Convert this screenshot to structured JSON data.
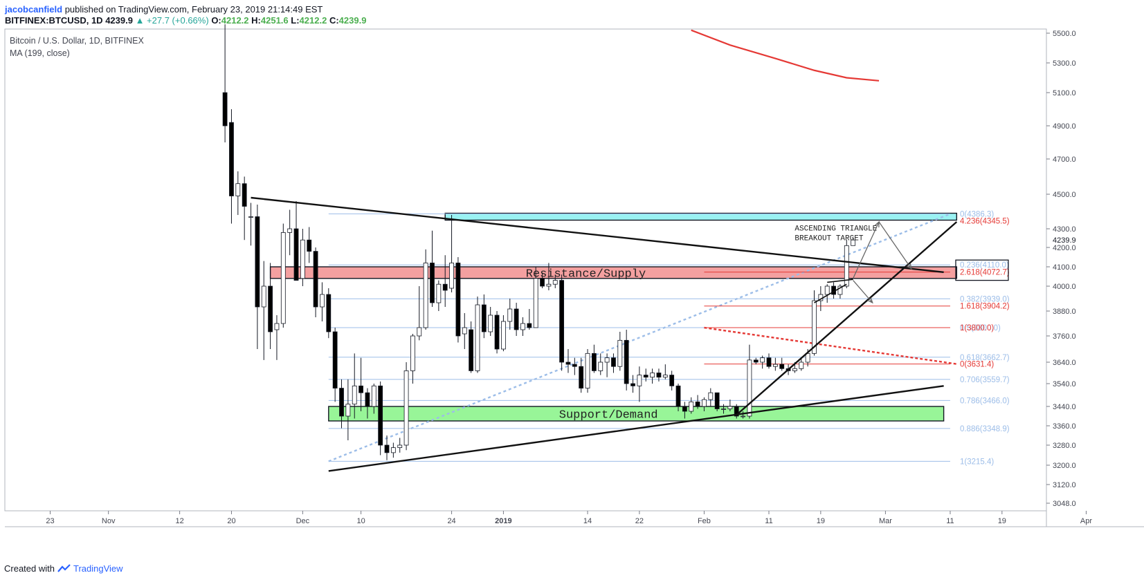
{
  "header": {
    "author": "jacobcanfield",
    "published": "published on TradingView.com, February 23, 2019 21:14:49 EST",
    "symbol": "BITFINEX:BTCUSD, 1D",
    "last": "4239.9",
    "change": "▲ +27.7 (+0.66%)",
    "o_label": "O:",
    "o": "4212.2",
    "h_label": "H:",
    "h": "4251.6",
    "l_label": "L:",
    "l": "4212.2",
    "c_label": "C:",
    "c": "4239.9"
  },
  "legend": {
    "title": "Bitcoin / U.S. Dollar, 1D, BITFINEX",
    "indicator": "MA (199, close)"
  },
  "footer": {
    "prefix": "Created with",
    "brand": "TradingView",
    "logo_icon": "tradingview-logo-icon"
  },
  "chart_data": {
    "type": "candlestick",
    "x_range": [
      "2018-10-16",
      "2019-04-09"
    ],
    "ylim": [
      2980,
      5560
    ],
    "x_ticks": [
      {
        "label": "23",
        "date": "2018-10-23"
      },
      {
        "label": "Nov",
        "date": "2018-11-01"
      },
      {
        "label": "12",
        "date": "2018-11-12"
      },
      {
        "label": "20",
        "date": "2018-11-20"
      },
      {
        "label": "Dec",
        "date": "2018-12-01"
      },
      {
        "label": "10",
        "date": "2018-12-10"
      },
      {
        "label": "24",
        "date": "2018-12-24"
      },
      {
        "label": "2019",
        "date": "2019-01-01",
        "bold": true
      },
      {
        "label": "14",
        "date": "2019-01-14"
      },
      {
        "label": "22",
        "date": "2019-01-22"
      },
      {
        "label": "Feb",
        "date": "2019-02-01"
      },
      {
        "label": "11",
        "date": "2019-02-11"
      },
      {
        "label": "19",
        "date": "2019-02-19"
      },
      {
        "label": "Mar",
        "date": "2019-03-01"
      },
      {
        "label": "11",
        "date": "2019-03-11"
      },
      {
        "label": "19",
        "date": "2019-03-19"
      },
      {
        "label": "Apr",
        "date": "2019-04-01"
      }
    ],
    "y_ticks": [
      "5500.0",
      "5300.0",
      "5100.0",
      "4900.0",
      "4700.0",
      "4500.0",
      "4300.0",
      "4200.0",
      "4100.0",
      "4000.0",
      "3880.0",
      "3760.0",
      "3640.0",
      "3540.0",
      "3440.0",
      "3360.0",
      "3280.0",
      "3200.0",
      "3120.0",
      "3048.0"
    ],
    "price_tag": {
      "value": 4239.9,
      "label": "4239.9"
    },
    "candles": [
      {
        "d": "2018-11-19",
        "o": 5100,
        "h": 5560,
        "l": 4800,
        "c": 4900
      },
      {
        "d": "2018-11-20",
        "o": 4920,
        "h": 5000,
        "l": 4330,
        "c": 4490
      },
      {
        "d": "2018-11-21",
        "o": 4490,
        "h": 4630,
        "l": 4380,
        "c": 4560
      },
      {
        "d": "2018-11-22",
        "o": 4560,
        "h": 4600,
        "l": 4240,
        "c": 4430
      },
      {
        "d": "2018-11-23",
        "o": 4370,
        "h": 4450,
        "l": 4210,
        "c": 4370
      },
      {
        "d": "2018-11-24",
        "o": 4370,
        "h": 4440,
        "l": 3700,
        "c": 3900
      },
      {
        "d": "2018-11-25",
        "o": 3900,
        "h": 4130,
        "l": 3650,
        "c": 4000
      },
      {
        "d": "2018-11-26",
        "o": 4000,
        "h": 4120,
        "l": 3700,
        "c": 3780
      },
      {
        "d": "2018-11-27",
        "o": 3790,
        "h": 3860,
        "l": 3650,
        "c": 3820
      },
      {
        "d": "2018-11-28",
        "o": 3820,
        "h": 4330,
        "l": 3800,
        "c": 4280
      },
      {
        "d": "2018-11-29",
        "o": 4280,
        "h": 4410,
        "l": 4160,
        "c": 4300
      },
      {
        "d": "2018-11-30",
        "o": 4300,
        "h": 4460,
        "l": 4030,
        "c": 4030
      },
      {
        "d": "2018-12-01",
        "o": 4040,
        "h": 4300,
        "l": 4000,
        "c": 4240
      },
      {
        "d": "2018-12-02",
        "o": 4240,
        "h": 4310,
        "l": 4120,
        "c": 4180
      },
      {
        "d": "2018-12-03",
        "o": 4180,
        "h": 4200,
        "l": 3850,
        "c": 3900
      },
      {
        "d": "2018-12-04",
        "o": 3900,
        "h": 4020,
        "l": 3830,
        "c": 3960
      },
      {
        "d": "2018-12-05",
        "o": 3960,
        "h": 3990,
        "l": 3750,
        "c": 3780
      },
      {
        "d": "2018-12-06",
        "o": 3780,
        "h": 3800,
        "l": 3460,
        "c": 3520
      },
      {
        "d": "2018-12-07",
        "o": 3520,
        "h": 3560,
        "l": 3350,
        "c": 3400
      },
      {
        "d": "2018-12-08",
        "o": 3400,
        "h": 3560,
        "l": 3300,
        "c": 3450
      },
      {
        "d": "2018-12-09",
        "o": 3450,
        "h": 3680,
        "l": 3390,
        "c": 3530
      },
      {
        "d": "2018-12-10",
        "o": 3530,
        "h": 3660,
        "l": 3420,
        "c": 3500
      },
      {
        "d": "2018-12-11",
        "o": 3500,
        "h": 3520,
        "l": 3390,
        "c": 3440
      },
      {
        "d": "2018-12-12",
        "o": 3440,
        "h": 3540,
        "l": 3410,
        "c": 3530
      },
      {
        "d": "2018-12-13",
        "o": 3530,
        "h": 3550,
        "l": 3240,
        "c": 3280
      },
      {
        "d": "2018-12-14",
        "o": 3280,
        "h": 3320,
        "l": 3220,
        "c": 3250
      },
      {
        "d": "2018-12-15",
        "o": 3250,
        "h": 3290,
        "l": 3230,
        "c": 3270
      },
      {
        "d": "2018-12-16",
        "o": 3270,
        "h": 3310,
        "l": 3250,
        "c": 3280
      },
      {
        "d": "2018-12-17",
        "o": 3280,
        "h": 3640,
        "l": 3260,
        "c": 3600
      },
      {
        "d": "2018-12-18",
        "o": 3600,
        "h": 3770,
        "l": 3540,
        "c": 3760
      },
      {
        "d": "2018-12-19",
        "o": 3760,
        "h": 4000,
        "l": 3740,
        "c": 3800
      },
      {
        "d": "2018-12-20",
        "o": 3800,
        "h": 4190,
        "l": 3790,
        "c": 4120
      },
      {
        "d": "2018-12-21",
        "o": 4120,
        "h": 4290,
        "l": 3900,
        "c": 3920
      },
      {
        "d": "2018-12-22",
        "o": 3920,
        "h": 4030,
        "l": 3880,
        "c": 4010
      },
      {
        "d": "2018-12-23",
        "o": 4010,
        "h": 4160,
        "l": 3900,
        "c": 3980
      },
      {
        "d": "2018-12-24",
        "o": 3990,
        "h": 4380,
        "l": 3970,
        "c": 4120
      },
      {
        "d": "2018-12-25",
        "o": 4120,
        "h": 4150,
        "l": 3730,
        "c": 3760
      },
      {
        "d": "2018-12-26",
        "o": 3770,
        "h": 3870,
        "l": 3700,
        "c": 3800
      },
      {
        "d": "2018-12-27",
        "o": 3790,
        "h": 3830,
        "l": 3590,
        "c": 3600
      },
      {
        "d": "2018-12-28",
        "o": 3600,
        "h": 3950,
        "l": 3590,
        "c": 3910
      },
      {
        "d": "2018-12-29",
        "o": 3910,
        "h": 3960,
        "l": 3750,
        "c": 3780
      },
      {
        "d": "2018-12-30",
        "o": 3780,
        "h": 3900,
        "l": 3760,
        "c": 3860
      },
      {
        "d": "2018-12-31",
        "o": 3860,
        "h": 3880,
        "l": 3680,
        "c": 3700
      },
      {
        "d": "2019-01-01",
        "o": 3700,
        "h": 3860,
        "l": 3690,
        "c": 3830
      },
      {
        "d": "2019-01-02",
        "o": 3830,
        "h": 3940,
        "l": 3790,
        "c": 3890
      },
      {
        "d": "2019-01-03",
        "o": 3890,
        "h": 3920,
        "l": 3760,
        "c": 3790
      },
      {
        "d": "2019-01-04",
        "o": 3790,
        "h": 3850,
        "l": 3760,
        "c": 3820
      },
      {
        "d": "2019-01-05",
        "o": 3820,
        "h": 3890,
        "l": 3790,
        "c": 3800
      },
      {
        "d": "2019-01-06",
        "o": 3800,
        "h": 4100,
        "l": 3800,
        "c": 4040
      },
      {
        "d": "2019-01-07",
        "o": 4040,
        "h": 4070,
        "l": 3990,
        "c": 4000
      },
      {
        "d": "2019-01-08",
        "o": 4000,
        "h": 4120,
        "l": 3980,
        "c": 4010
      },
      {
        "d": "2019-01-09",
        "o": 4010,
        "h": 4060,
        "l": 3990,
        "c": 4030
      },
      {
        "d": "2019-01-10",
        "o": 4030,
        "h": 4060,
        "l": 3600,
        "c": 3640
      },
      {
        "d": "2019-01-11",
        "o": 3640,
        "h": 3700,
        "l": 3590,
        "c": 3630
      },
      {
        "d": "2019-01-12",
        "o": 3630,
        "h": 3660,
        "l": 3580,
        "c": 3620
      },
      {
        "d": "2019-01-13",
        "o": 3620,
        "h": 3660,
        "l": 3500,
        "c": 3520
      },
      {
        "d": "2019-01-14",
        "o": 3520,
        "h": 3700,
        "l": 3500,
        "c": 3680
      },
      {
        "d": "2019-01-15",
        "o": 3680,
        "h": 3720,
        "l": 3590,
        "c": 3600
      },
      {
        "d": "2019-01-16",
        "o": 3600,
        "h": 3680,
        "l": 3580,
        "c": 3640
      },
      {
        "d": "2019-01-17",
        "o": 3640,
        "h": 3680,
        "l": 3570,
        "c": 3660
      },
      {
        "d": "2019-01-18",
        "o": 3660,
        "h": 3680,
        "l": 3590,
        "c": 3620
      },
      {
        "d": "2019-01-19",
        "o": 3620,
        "h": 3780,
        "l": 3600,
        "c": 3740
      },
      {
        "d": "2019-01-20",
        "o": 3740,
        "h": 3790,
        "l": 3510,
        "c": 3540
      },
      {
        "d": "2019-01-21",
        "o": 3540,
        "h": 3580,
        "l": 3500,
        "c": 3530
      },
      {
        "d": "2019-01-22",
        "o": 3530,
        "h": 3620,
        "l": 3460,
        "c": 3580
      },
      {
        "d": "2019-01-23",
        "o": 3580,
        "h": 3610,
        "l": 3550,
        "c": 3570
      },
      {
        "d": "2019-01-24",
        "o": 3570,
        "h": 3610,
        "l": 3540,
        "c": 3590
      },
      {
        "d": "2019-01-25",
        "o": 3590,
        "h": 3610,
        "l": 3550,
        "c": 3570
      },
      {
        "d": "2019-01-26",
        "o": 3570,
        "h": 3630,
        "l": 3560,
        "c": 3580
      },
      {
        "d": "2019-01-27",
        "o": 3580,
        "h": 3600,
        "l": 3510,
        "c": 3530
      },
      {
        "d": "2019-01-28",
        "o": 3530,
        "h": 3540,
        "l": 3420,
        "c": 3440
      },
      {
        "d": "2019-01-29",
        "o": 3440,
        "h": 3460,
        "l": 3390,
        "c": 3420
      },
      {
        "d": "2019-01-30",
        "o": 3420,
        "h": 3480,
        "l": 3410,
        "c": 3460
      },
      {
        "d": "2019-01-31",
        "o": 3460,
        "h": 3490,
        "l": 3430,
        "c": 3440
      },
      {
        "d": "2019-02-01",
        "o": 3440,
        "h": 3480,
        "l": 3420,
        "c": 3470
      },
      {
        "d": "2019-02-02",
        "o": 3470,
        "h": 3520,
        "l": 3440,
        "c": 3500
      },
      {
        "d": "2019-02-03",
        "o": 3500,
        "h": 3500,
        "l": 3420,
        "c": 3430
      },
      {
        "d": "2019-02-04",
        "o": 3430,
        "h": 3450,
        "l": 3410,
        "c": 3430
      },
      {
        "d": "2019-02-05",
        "o": 3430,
        "h": 3470,
        "l": 3420,
        "c": 3440
      },
      {
        "d": "2019-02-06",
        "o": 3440,
        "h": 3450,
        "l": 3390,
        "c": 3400
      },
      {
        "d": "2019-02-07",
        "o": 3400,
        "h": 3420,
        "l": 3390,
        "c": 3400
      },
      {
        "d": "2019-02-08",
        "o": 3400,
        "h": 3720,
        "l": 3390,
        "c": 3650
      },
      {
        "d": "2019-02-09",
        "o": 3650,
        "h": 3660,
        "l": 3630,
        "c": 3640
      },
      {
        "d": "2019-02-10",
        "o": 3640,
        "h": 3670,
        "l": 3610,
        "c": 3660
      },
      {
        "d": "2019-02-11",
        "o": 3660,
        "h": 3680,
        "l": 3610,
        "c": 3620
      },
      {
        "d": "2019-02-12",
        "o": 3620,
        "h": 3660,
        "l": 3600,
        "c": 3630
      },
      {
        "d": "2019-02-13",
        "o": 3630,
        "h": 3660,
        "l": 3600,
        "c": 3610
      },
      {
        "d": "2019-02-14",
        "o": 3610,
        "h": 3630,
        "l": 3580,
        "c": 3600
      },
      {
        "d": "2019-02-15",
        "o": 3600,
        "h": 3640,
        "l": 3590,
        "c": 3610
      },
      {
        "d": "2019-02-16",
        "o": 3610,
        "h": 3660,
        "l": 3600,
        "c": 3640
      },
      {
        "d": "2019-02-17",
        "o": 3640,
        "h": 3700,
        "l": 3620,
        "c": 3680
      },
      {
        "d": "2019-02-18",
        "o": 3680,
        "h": 3980,
        "l": 3670,
        "c": 3930
      },
      {
        "d": "2019-02-19",
        "o": 3930,
        "h": 4000,
        "l": 3880,
        "c": 3960
      },
      {
        "d": "2019-02-20",
        "o": 3960,
        "h": 4010,
        "l": 3920,
        "c": 4000
      },
      {
        "d": "2019-02-21",
        "o": 4000,
        "h": 4020,
        "l": 3940,
        "c": 3960
      },
      {
        "d": "2019-02-22",
        "o": 3960,
        "h": 4010,
        "l": 3940,
        "c": 4000
      },
      {
        "d": "2019-02-23",
        "o": 4000,
        "h": 4240,
        "l": 3990,
        "c": 4210
      },
      {
        "d": "2019-02-24",
        "o": 4210,
        "h": 4252,
        "l": 4210,
        "c": 4240
      }
    ],
    "ma": {
      "label": "MA (199, close)",
      "color": "#e53935",
      "points": [
        [
          "2019-01-30",
          5520
        ],
        [
          "2019-02-05",
          5420
        ],
        [
          "2019-02-12",
          5330
        ],
        [
          "2019-02-18",
          5250
        ],
        [
          "2019-02-23",
          5200
        ],
        [
          "2019-02-28",
          5180
        ]
      ]
    },
    "fib_blue": {
      "color": "#9cbde8",
      "x_start": "2018-12-05",
      "x_end": "2019-03-11",
      "levels": [
        {
          "price": 4386.3,
          "label": "0(4386.3)"
        },
        {
          "price": 4110.0,
          "label": "0.236(4110.0)"
        },
        {
          "price": 3939.0,
          "label": "0.382(3939.0)"
        },
        {
          "price": 3800.0,
          "label": "0.5(3800.0)"
        },
        {
          "price": 3662.7,
          "label": "0.618(3662.7)"
        },
        {
          "price": 3559.7,
          "label": "0.706(3559.7)"
        },
        {
          "price": 3466.0,
          "label": "0.786(3466.0)"
        },
        {
          "price": 3348.9,
          "label": "0.886(3348.9)"
        },
        {
          "price": 3215.4,
          "label": "1(3215.4)"
        }
      ]
    },
    "fib_red": {
      "color": "#e53935",
      "x_start": "2019-02-01",
      "x_end": "2019-03-11",
      "levels": [
        {
          "price": 4345.5,
          "label": "4.236(4345.5)"
        },
        {
          "price": 4072.7,
          "label": "2.618(4072.7)"
        },
        {
          "price": 3904.2,
          "label": "1.618(3904.2)"
        },
        {
          "price": 3800.0,
          "label": "1(3800.0)"
        },
        {
          "price": 3631.4,
          "label": "0(3631.4)"
        }
      ]
    },
    "zones": [
      {
        "name": "resistance",
        "label": "Resistance/Supply",
        "from": "2018-11-26",
        "to": "2019-03-12",
        "top": 4100,
        "bottom": 4040,
        "color": "#f4a0a0"
      },
      {
        "name": "support",
        "label": "Support/Demand",
        "from": "2018-12-05",
        "to": "2019-03-10",
        "top": 3440,
        "bottom": 3380,
        "color": "#98f598"
      },
      {
        "name": "target",
        "label": "",
        "from": "2018-12-23",
        "to": "2019-03-12",
        "top": 4390,
        "bottom": 4350,
        "color": "#9af2f2"
      }
    ],
    "annotation": {
      "text": [
        "ASCENDING TRIANGLE",
        "BREAKOUT TARGET"
      ],
      "date": "2019-02-15",
      "price": 4290
    }
  }
}
